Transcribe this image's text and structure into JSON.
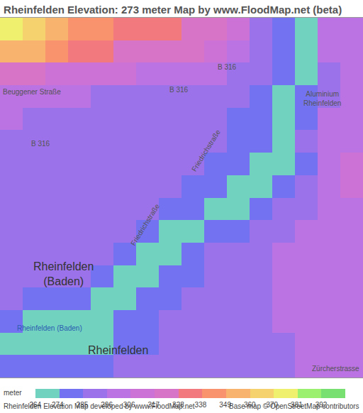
{
  "chart_data": {
    "type": "heatmap",
    "title": "Rheinfelden Elevation: 273 meter Map by www.FloodMap.net (beta)",
    "x": [
      0,
      1,
      2,
      3,
      4,
      5,
      6,
      7,
      8,
      9,
      10,
      11,
      12,
      13,
      14,
      15
    ],
    "y": [
      0,
      1,
      2,
      3,
      4,
      5,
      6,
      7,
      8,
      9,
      10,
      11,
      12,
      13,
      14,
      15
    ],
    "xlim": [
      -0.5,
      15.5
    ],
    "ylim": [
      15.5,
      -0.5
    ],
    "tick_labels": false,
    "z": [
      [
        375,
        365,
        355,
        348,
        340,
        335,
        332,
        330,
        328,
        320,
        310,
        290,
        275,
        272,
        300,
        300
      ],
      [
        360,
        350,
        340,
        335,
        330,
        328,
        325,
        322,
        318,
        315,
        305,
        290,
        278,
        272,
        298,
        300
      ],
      [
        320,
        318,
        315,
        312,
        310,
        308,
        306,
        305,
        303,
        300,
        296,
        288,
        275,
        272,
        296,
        300
      ],
      [
        302,
        300,
        298,
        297,
        296,
        296,
        295,
        294,
        292,
        290,
        288,
        282,
        272,
        285,
        296,
        302
      ],
      [
        298,
        296,
        295,
        294,
        293,
        293,
        292,
        291,
        290,
        288,
        285,
        280,
        272,
        285,
        300,
        305
      ],
      [
        296,
        295,
        294,
        293,
        292,
        291,
        290,
        290,
        289,
        287,
        285,
        278,
        272,
        286,
        300,
        306
      ],
      [
        295,
        294,
        293,
        292,
        291,
        290,
        289,
        288,
        287,
        285,
        280,
        272,
        266,
        280,
        300,
        308
      ],
      [
        294,
        293,
        292,
        291,
        290,
        289,
        288,
        286,
        284,
        280,
        272,
        266,
        280,
        292,
        300,
        308
      ],
      [
        293,
        292,
        291,
        290,
        289,
        288,
        286,
        284,
        276,
        266,
        270,
        282,
        292,
        296,
        302,
        306
      ],
      [
        292,
        291,
        290,
        289,
        288,
        287,
        284,
        274,
        266,
        275,
        285,
        292,
        296,
        298,
        302,
        306
      ],
      [
        291,
        290,
        289,
        288,
        286,
        280,
        272,
        266,
        276,
        286,
        292,
        295,
        298,
        300,
        302,
        305
      ],
      [
        290,
        289,
        288,
        286,
        280,
        272,
        266,
        276,
        285,
        290,
        293,
        296,
        298,
        300,
        302,
        304
      ],
      [
        286,
        284,
        280,
        275,
        272,
        266,
        276,
        284,
        288,
        290,
        293,
        296,
        298,
        300,
        302,
        304
      ],
      [
        276,
        274,
        273,
        268,
        266,
        275,
        282,
        286,
        288,
        290,
        292,
        295,
        297,
        300,
        302,
        304
      ],
      [
        266,
        266,
        266,
        266,
        272,
        280,
        284,
        287,
        288,
        290,
        292,
        294,
        296,
        298,
        300,
        302
      ],
      [
        276,
        276,
        278,
        280,
        284,
        286,
        287,
        288,
        289,
        290,
        292,
        294,
        296,
        298,
        300,
        302
      ]
    ],
    "colorbar": {
      "title": "meter",
      "range": [
        264,
        402.7
      ],
      "ticks": [
        264,
        274,
        285,
        296,
        306,
        317,
        328,
        338,
        349,
        360,
        370,
        381,
        392
      ],
      "colors": [
        "#72d2c0",
        "#7373f2",
        "#9c72ea",
        "#bb72e2",
        "#cc72d6",
        "#d874c8",
        "#f27a7e",
        "#f8936e",
        "#f8b46e",
        "#f6d26e",
        "#eef06e",
        "#9cf070",
        "#78e070"
      ]
    },
    "labels": [
      {
        "lines": [
          "B 316"
        ],
        "x": 9.5,
        "y": 1.7
      },
      {
        "lines": [
          "B 316"
        ],
        "x": 7.4,
        "y": 2.7
      },
      {
        "lines": [
          "B 316"
        ],
        "x": 1.3,
        "y": 5.1
      },
      {
        "lines": [
          "Beuggener Straße"
        ],
        "x": 0.9,
        "y": 2.8
      },
      {
        "lines": [
          "Friedrichstraße"
        ],
        "x": 8.6,
        "y": 5.4
      },
      {
        "lines": [
          "Friedrichstraße"
        ],
        "x": 5.9,
        "y": 8.7
      },
      {
        "lines": [
          "Aluminium",
          "Rheinfelden"
        ],
        "x": 13.7,
        "y": 3.1
      },
      {
        "lines": [
          "Rheinfelden",
          "(Baden)"
        ],
        "x": 2.3,
        "y": 10.9
      },
      {
        "lines": [
          "Rheinfelden (Baden)"
        ],
        "x": 1.7,
        "y": 13.3,
        "color": "#2a5db0"
      },
      {
        "lines": [
          "Rheinfelden"
        ],
        "x": 4.7,
        "y": 14.3
      },
      {
        "lines": [
          "Zürcherstrasse"
        ],
        "x": 14.3,
        "y": 15.1
      }
    ],
    "footer_left": "Rheinfelden Elevation Map developed by www.FloodMap.net",
    "footer_right": "Base map © OpenStreetMap contributors"
  }
}
